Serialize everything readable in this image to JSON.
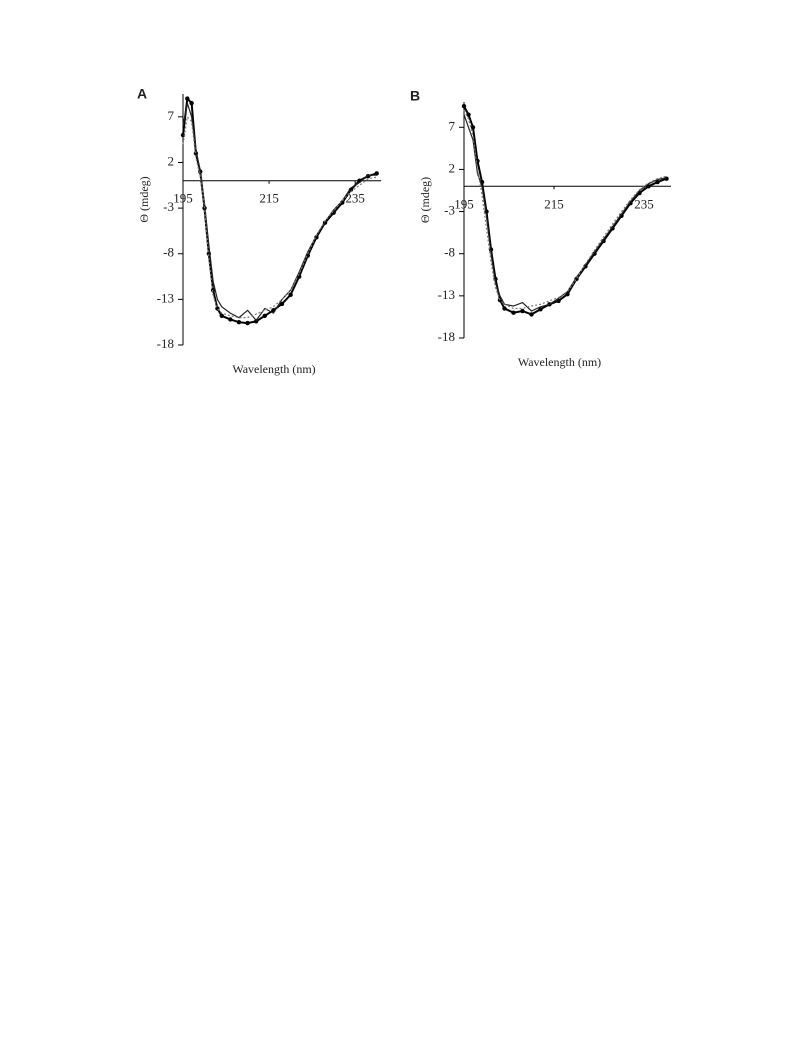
{
  "chart_data": [
    {
      "type": "line",
      "title": "A",
      "x_label": "Wavelength (nm)",
      "y_label": "Θ (mdeg)",
      "xlim": [
        195,
        241
      ],
      "ylim": [
        -18,
        9.5
      ],
      "xticks": [
        195,
        215,
        235
      ],
      "yticks": [
        7,
        2,
        -3,
        -8,
        -13,
        -18
      ],
      "x": [
        195,
        196,
        197,
        198,
        199,
        200,
        201,
        202,
        203,
        204,
        206,
        208,
        210,
        212,
        214,
        216,
        218,
        220,
        222,
        224,
        226,
        228,
        230,
        232,
        234,
        236,
        238,
        240
      ],
      "series": [
        {
          "color": "#000000",
          "marker": true,
          "dashed": false,
          "values": [
            5,
            9,
            8.5,
            3,
            1,
            -3,
            -8,
            -12,
            -14,
            -14.8,
            -15.2,
            -15.5,
            -15.6,
            -15.4,
            -14.8,
            -14.2,
            -13.5,
            -12.5,
            -10.5,
            -8.2,
            -6.2,
            -4.6,
            -3.5,
            -2.4,
            -1,
            0,
            0.5,
            0.8
          ]
        },
        {
          "color": "#222222",
          "marker": false,
          "dashed": false,
          "values": [
            6,
            8.5,
            7,
            3.5,
            1,
            -2.5,
            -7,
            -11,
            -13,
            -13.8,
            -14.5,
            -15,
            -14.2,
            -15.3,
            -14,
            -14.5,
            -13,
            -12,
            -10,
            -7.8,
            -6,
            -4.5,
            -3.2,
            -2.2,
            -0.8,
            -0.2,
            0.6,
            0.6
          ]
        },
        {
          "color": "#777777",
          "marker": false,
          "dashed": true,
          "values": [
            4,
            7,
            6.5,
            2.5,
            0.5,
            -3,
            -8.5,
            -12.5,
            -14,
            -14.5,
            -14.8,
            -15,
            -15,
            -14.6,
            -14.2,
            -13.8,
            -13,
            -12,
            -10.2,
            -8,
            -6,
            -4.4,
            -3.3,
            -2.2,
            -1.2,
            -0.5,
            0.2,
            0.4
          ]
        }
      ]
    },
    {
      "type": "line",
      "title": "B",
      "x_label": "Wavelength (nm)",
      "y_label": "Θ (mdeg)",
      "xlim": [
        195,
        241
      ],
      "ylim": [
        -18,
        10
      ],
      "xticks": [
        195,
        215,
        235
      ],
      "yticks": [
        7,
        2,
        -3,
        -8,
        -13,
        -18
      ],
      "x": [
        195,
        196,
        197,
        198,
        199,
        200,
        201,
        202,
        203,
        204,
        206,
        208,
        210,
        212,
        214,
        216,
        218,
        220,
        222,
        224,
        226,
        228,
        230,
        232,
        234,
        236,
        238,
        240
      ],
      "series": [
        {
          "color": "#000000",
          "marker": true,
          "dashed": false,
          "values": [
            9.5,
            8.5,
            7,
            3,
            0.5,
            -3,
            -7.5,
            -11,
            -13.5,
            -14.5,
            -15,
            -14.8,
            -15.2,
            -14.6,
            -14,
            -13.6,
            -12.8,
            -11,
            -9.5,
            -8,
            -6.5,
            -5,
            -3.5,
            -2,
            -0.8,
            0,
            0.5,
            0.9
          ]
        },
        {
          "color": "#222222",
          "marker": false,
          "dashed": false,
          "values": [
            8.5,
            7,
            5.5,
            1.5,
            0,
            -3.5,
            -8,
            -11.5,
            -13,
            -14,
            -14.2,
            -13.8,
            -14.8,
            -14.3,
            -14,
            -13.3,
            -12.5,
            -10.8,
            -9.3,
            -7.8,
            -6.3,
            -4.8,
            -3.3,
            -1.8,
            -0.5,
            0.3,
            0.8,
            1
          ]
        },
        {
          "color": "#777777",
          "marker": false,
          "dashed": true,
          "values": [
            9,
            8,
            6,
            2,
            -1,
            -5,
            -9,
            -12,
            -13.5,
            -14,
            -14.5,
            -14.5,
            -14.2,
            -14,
            -13.6,
            -13.2,
            -12.5,
            -11,
            -9.2,
            -7.6,
            -6,
            -4.5,
            -3,
            -1.6,
            -0.4,
            0.4,
            0.9,
            1.2
          ]
        }
      ]
    }
  ]
}
